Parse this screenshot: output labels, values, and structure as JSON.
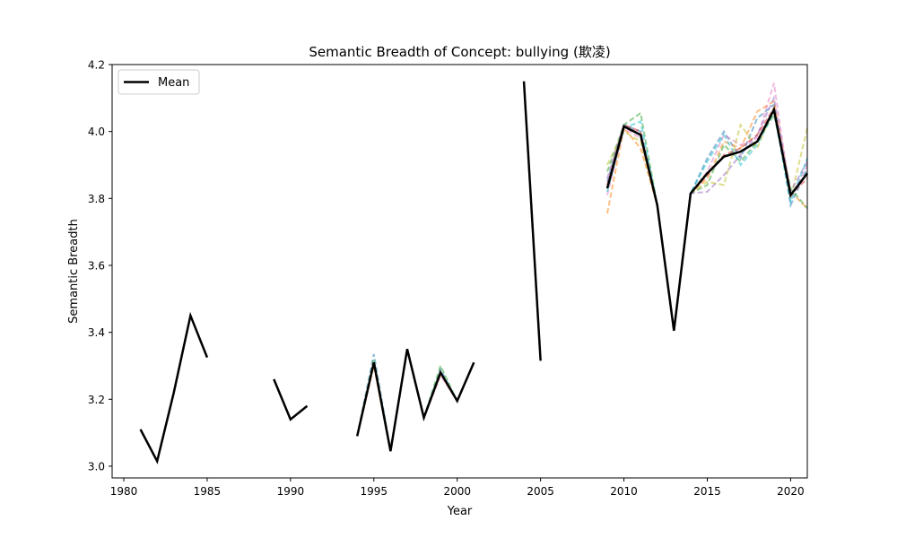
{
  "chart_data": {
    "type": "line",
    "title": "Semantic Breadth of Concept: bullying (欺凌)",
    "xlabel": "Year",
    "ylabel": "Semantic Breadth",
    "xlim": [
      1979.3,
      2021
    ],
    "ylim": [
      2.965,
      4.2
    ],
    "xticks": [
      1980,
      1985,
      1990,
      1995,
      2000,
      2005,
      2010,
      2015,
      2020
    ],
    "yticks": [
      3.0,
      3.2,
      3.4,
      3.6,
      3.8,
      4.0,
      4.2
    ],
    "xtick_labels": [
      "1980",
      "1985",
      "1990",
      "1995",
      "2000",
      "2005",
      "2010",
      "2015",
      "2020"
    ],
    "ytick_labels": [
      "3.0",
      "3.2",
      "3.4",
      "3.6",
      "3.8",
      "4.0",
      "4.2"
    ],
    "legend": {
      "position": "top-left",
      "entries": [
        "Mean"
      ]
    },
    "grid": false,
    "mean_series": {
      "name": "Mean",
      "color": "#000000",
      "segments": [
        [
          [
            1981,
            3.11
          ],
          [
            1982,
            3.015
          ],
          [
            1983,
            3.22
          ],
          [
            1984,
            3.45
          ],
          [
            1985,
            3.325
          ]
        ],
        [
          [
            1989,
            3.26
          ],
          [
            1990,
            3.14
          ],
          [
            1991,
            3.18
          ]
        ],
        [
          [
            1994,
            3.09
          ],
          [
            1995,
            3.31
          ],
          [
            1996,
            3.045
          ],
          [
            1997,
            3.35
          ],
          [
            1998,
            3.145
          ],
          [
            1999,
            3.28
          ],
          [
            2000,
            3.195
          ],
          [
            2001,
            3.31
          ]
        ],
        [
          [
            2004,
            4.15
          ],
          [
            2005,
            3.315
          ]
        ],
        [
          [
            2009,
            3.83
          ],
          [
            2010,
            4.015
          ],
          [
            2011,
            3.99
          ],
          [
            2012,
            3.78
          ],
          [
            2013,
            3.405
          ],
          [
            2014,
            3.815
          ],
          [
            2015,
            3.875
          ],
          [
            2016,
            3.925
          ],
          [
            2017,
            3.94
          ],
          [
            2018,
            3.97
          ],
          [
            2019,
            4.065
          ],
          [
            2020,
            3.81
          ],
          [
            2021,
            3.875
          ]
        ]
      ]
    },
    "individual_series": [
      {
        "color": "#1f77b4",
        "segments": [
          [
            [
              1994,
              3.09
            ],
            [
              1995,
              3.335
            ],
            [
              1996,
              3.045
            ],
            [
              1997,
              3.35
            ],
            [
              1998,
              3.145
            ],
            [
              1999,
              3.29
            ],
            [
              2000,
              3.195
            ],
            [
              2001,
              3.31
            ]
          ],
          [
            [
              2009,
              3.85
            ],
            [
              2010,
              4.02
            ],
            [
              2011,
              4.0
            ],
            [
              2012,
              3.78
            ],
            [
              2013,
              3.405
            ],
            [
              2014,
              3.815
            ],
            [
              2015,
              3.92
            ],
            [
              2016,
              4.0
            ],
            [
              2017,
              3.92
            ],
            [
              2018,
              4.04
            ],
            [
              2019,
              4.08
            ],
            [
              2020,
              3.78
            ],
            [
              2021,
              3.89
            ]
          ]
        ]
      },
      {
        "color": "#ff7f0e",
        "segments": [
          [
            [
              1994,
              3.09
            ],
            [
              1995,
              3.3
            ],
            [
              1996,
              3.045
            ],
            [
              1997,
              3.35
            ],
            [
              1998,
              3.145
            ],
            [
              1999,
              3.275
            ],
            [
              2000,
              3.195
            ],
            [
              2001,
              3.31
            ]
          ],
          [
            [
              2009,
              3.755
            ],
            [
              2010,
              4.01
            ],
            [
              2011,
              3.95
            ],
            [
              2012,
              3.78
            ],
            [
              2013,
              3.405
            ],
            [
              2014,
              3.815
            ],
            [
              2015,
              3.86
            ],
            [
              2016,
              3.97
            ],
            [
              2017,
              3.95
            ],
            [
              2018,
              4.06
            ],
            [
              2019,
              4.09
            ],
            [
              2020,
              3.82
            ],
            [
              2021,
              3.77
            ]
          ]
        ]
      },
      {
        "color": "#2ca02c",
        "segments": [
          [
            [
              1994,
              3.09
            ],
            [
              1995,
              3.32
            ],
            [
              1996,
              3.045
            ],
            [
              1997,
              3.35
            ],
            [
              1998,
              3.145
            ],
            [
              1999,
              3.3
            ],
            [
              2000,
              3.195
            ],
            [
              2001,
              3.31
            ]
          ],
          [
            [
              2009,
              3.88
            ],
            [
              2010,
              4.02
            ],
            [
              2011,
              4.055
            ],
            [
              2012,
              3.78
            ],
            [
              2013,
              3.405
            ],
            [
              2014,
              3.815
            ],
            [
              2015,
              3.84
            ],
            [
              2016,
              3.96
            ],
            [
              2017,
              3.91
            ],
            [
              2018,
              3.97
            ],
            [
              2019,
              4.05
            ],
            [
              2020,
              3.83
            ],
            [
              2021,
              3.77
            ]
          ]
        ]
      },
      {
        "color": "#e377c2",
        "segments": [
          [
            [
              1994,
              3.09
            ],
            [
              1995,
              3.31
            ],
            [
              1996,
              3.045
            ],
            [
              1997,
              3.35
            ],
            [
              1998,
              3.145
            ],
            [
              1999,
              3.27
            ],
            [
              2000,
              3.195
            ],
            [
              2001,
              3.31
            ]
          ],
          [
            [
              2009,
              3.81
            ],
            [
              2010,
              4.01
            ],
            [
              2011,
              3.98
            ],
            [
              2012,
              3.78
            ],
            [
              2013,
              3.405
            ],
            [
              2014,
              3.815
            ],
            [
              2015,
              3.88
            ],
            [
              2016,
              3.99
            ],
            [
              2017,
              3.96
            ],
            [
              2018,
              3.98
            ],
            [
              2019,
              4.145
            ],
            [
              2020,
              3.8
            ],
            [
              2021,
              3.9
            ]
          ]
        ]
      },
      {
        "color": "#bcbd22",
        "segments": [
          [
            [
              2009,
              3.9
            ],
            [
              2010,
              4.0
            ],
            [
              2011,
              3.97
            ],
            [
              2012,
              3.78
            ],
            [
              2013,
              3.405
            ],
            [
              2014,
              3.815
            ],
            [
              2015,
              3.85
            ],
            [
              2016,
              3.84
            ],
            [
              2017,
              4.02
            ],
            [
              2018,
              3.95
            ],
            [
              2019,
              4.07
            ],
            [
              2020,
              3.8
            ],
            [
              2021,
              4.01
            ]
          ]
        ]
      },
      {
        "color": "#9467bd",
        "segments": [
          [
            [
              2009,
              3.86
            ],
            [
              2010,
              4.02
            ],
            [
              2011,
              3.99
            ],
            [
              2012,
              3.78
            ],
            [
              2013,
              3.405
            ],
            [
              2014,
              3.815
            ],
            [
              2015,
              3.82
            ],
            [
              2016,
              3.87
            ],
            [
              2017,
              3.93
            ],
            [
              2018,
              3.99
            ],
            [
              2019,
              4.1
            ],
            [
              2020,
              3.82
            ],
            [
              2021,
              3.91
            ]
          ]
        ]
      },
      {
        "color": "#17becf",
        "segments": [
          [
            [
              2009,
              3.82
            ],
            [
              2010,
              4.01
            ],
            [
              2011,
              4.03
            ],
            [
              2012,
              3.78
            ],
            [
              2013,
              3.405
            ],
            [
              2014,
              3.815
            ],
            [
              2015,
              3.91
            ],
            [
              2016,
              3.99
            ],
            [
              2017,
              3.9
            ],
            [
              2018,
              3.96
            ],
            [
              2019,
              4.06
            ],
            [
              2020,
              3.79
            ],
            [
              2021,
              3.92
            ]
          ]
        ]
      },
      {
        "color": "#d62728",
        "segments": [
          [
            [
              2009,
              3.84
            ],
            [
              2010,
              4.02
            ],
            [
              2011,
              4.0
            ],
            [
              2012,
              3.78
            ],
            [
              2013,
              3.405
            ],
            [
              2014,
              3.815
            ],
            [
              2015,
              3.87
            ],
            [
              2016,
              3.93
            ],
            [
              2017,
              3.95
            ],
            [
              2018,
              3.99
            ],
            [
              2019,
              4.07
            ],
            [
              2020,
              3.81
            ],
            [
              2021,
              3.86
            ]
          ]
        ]
      }
    ]
  }
}
